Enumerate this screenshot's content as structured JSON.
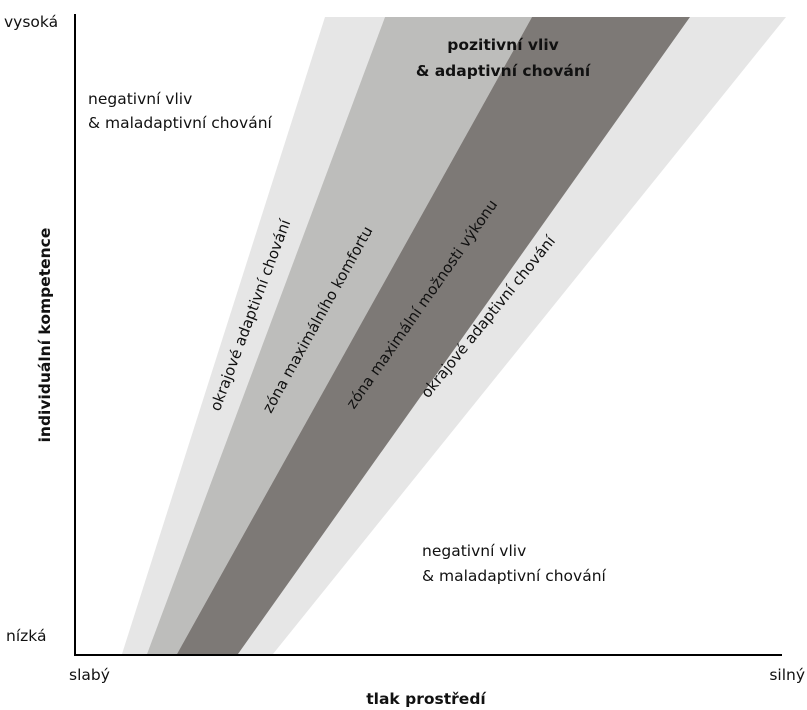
{
  "axes": {
    "y_label": "individuální kompetence",
    "x_label": "tlak prostředí",
    "y_top": "vysoká",
    "y_bottom": "nízká",
    "x_left": "slabý",
    "x_right": "silný"
  },
  "regions": {
    "upper_left": {
      "line1": "negativní vliv",
      "line2": "& maladaptivní chování"
    },
    "lower_right": {
      "line1": "negativní vliv",
      "line2": "& maladaptivní chování"
    },
    "top_center": {
      "line1": "pozitivní vliv",
      "line2": "& adaptivní chování"
    }
  },
  "bands": {
    "outer_left": {
      "label": "okrajové adaptivní chování",
      "color": "#e6e6e6"
    },
    "comfort": {
      "label": "zóna maximálního komfortu",
      "color": "#bdbdbb"
    },
    "performance": {
      "label": "zóna maximální možnosti výkonu",
      "color": "#7d7976"
    },
    "outer_right": {
      "label": "okrajové adaptivní chování",
      "color": "#e6e6e6"
    }
  }
}
